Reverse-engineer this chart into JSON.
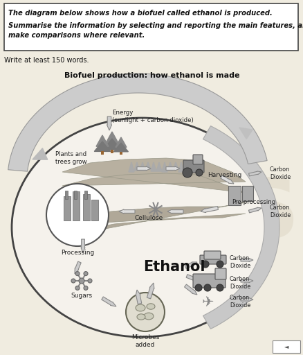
{
  "title": "Biofuel production: how ethanol is made",
  "box_line1": "The diagram below shows how a biofuel called ethanol is produced.",
  "box_line2": "Summarise the information by selecting and reporting the main features, and",
  "box_line3": "make comparisons where relevant.",
  "write_text": "Write at least 150 words.",
  "bg_color": "#f0ece0",
  "box_bg": "#ffffff",
  "wm_color": "#d8d0bc",
  "label_energy": "Energy\n(sunlight + carbon dioxide)",
  "label_plants": "Plants and\ntrees grow",
  "label_harvest": "Harvesting",
  "label_co2_1": "Carbon\nDioxide",
  "label_preproc": "Pre-processing",
  "label_co2_2": "Carbon\nDioxide",
  "label_cellulose": "Cellulose",
  "label_processing": "Processing",
  "label_ethanol": "Ethanol",
  "label_sugars": "Sugars",
  "label_microbes": "Microbes\nadded",
  "label_co2_car": "Carbon\nDioxide",
  "label_co2_truck": "Carbon\nDioxide",
  "label_co2_plane": "Carbon\nDioxide"
}
